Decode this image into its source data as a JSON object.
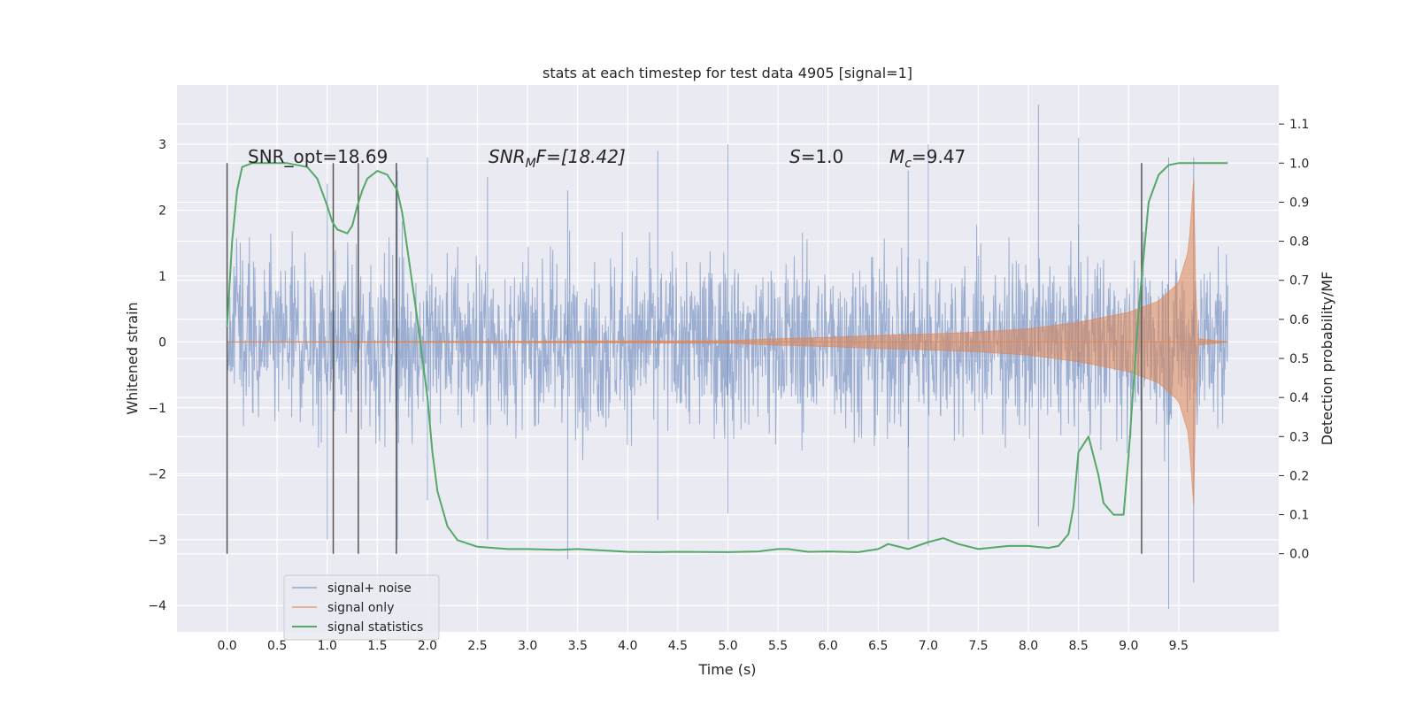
{
  "chart_data": {
    "type": "line",
    "title": "stats at each timestep for test data 4905 [signal=1]",
    "xlabel": "Time (s)",
    "ylabel": "Whitened strain",
    "ylabel_right": "Detection probability/MF",
    "xlim": [
      -0.5,
      10.5
    ],
    "ylim": [
      -4.4,
      3.9
    ],
    "ylim_right": [
      -0.2,
      1.2
    ],
    "x_ticks": [
      0.0,
      0.5,
      1.0,
      1.5,
      2.0,
      2.5,
      3.0,
      3.5,
      4.0,
      4.5,
      5.0,
      5.5,
      6.0,
      6.5,
      7.0,
      7.5,
      8.0,
      8.5,
      9.0,
      9.5
    ],
    "x_tick_labels": [
      "0.0",
      "0.5",
      "1.0",
      "1.5",
      "2.0",
      "2.5",
      "3.0",
      "3.5",
      "4.0",
      "4.5",
      "5.0",
      "5.5",
      "6.0",
      "6.5",
      "7.0",
      "7.5",
      "8.0",
      "8.5",
      "9.0",
      "9.5"
    ],
    "y_ticks": [
      -4,
      -3,
      -2,
      -1,
      0,
      1,
      2,
      3
    ],
    "y_tick_labels": [
      "−4",
      "−3",
      "−2",
      "−1",
      "0",
      "1",
      "2",
      "3"
    ],
    "y_right_ticks": [
      0.0,
      0.1,
      0.2,
      0.3,
      0.4,
      0.5,
      0.6,
      0.7,
      0.8,
      0.9,
      1.0,
      1.1
    ],
    "y_right_tick_labels": [
      "0.0",
      "0.1",
      "0.2",
      "0.3",
      "0.4",
      "0.5",
      "0.6",
      "0.7",
      "0.8",
      "0.9",
      "1.0",
      "1.1"
    ],
    "grid": true,
    "legend_position": "bottom-left",
    "annotations": [
      {
        "text": "SNR_opt=18.69"
      },
      {
        "text": "SNR",
        "sub": "M",
        "suffix": "F=[18.42]"
      },
      {
        "text": "S",
        "suffix": "=1.0"
      },
      {
        "text": "M",
        "sub": "c",
        "suffix": "=9.47"
      }
    ],
    "vertical_markers_x": [
      0.0,
      1.06,
      1.31,
      1.69,
      9.13
    ],
    "noise_envelope": {
      "x_range": [
        0.0,
        9.99
      ],
      "typical_amplitude": 1.5,
      "max_value": 3.6,
      "min_value": -4.05
    },
    "series": [
      {
        "name": "signal+ noise",
        "color": "#4c72b0",
        "axis": "left",
        "peaks": [
          [
            0.0,
            1.0,
            -3.0
          ],
          [
            1.0,
            2.4,
            -3.0
          ],
          [
            1.7,
            2.6,
            -3.0
          ],
          [
            2.0,
            2.8,
            -2.4
          ],
          [
            2.6,
            2.5,
            -3.0
          ],
          [
            3.4,
            2.3,
            -3.3
          ],
          [
            4.3,
            2.9,
            -2.7
          ],
          [
            5.0,
            3.0,
            -2.6
          ],
          [
            6.8,
            2.6,
            -3.0
          ],
          [
            7.0,
            3.0,
            -3.1
          ],
          [
            8.1,
            3.6,
            -2.8
          ],
          [
            8.5,
            3.1,
            -3.0
          ],
          [
            9.4,
            2.8,
            -4.05
          ],
          [
            9.65,
            2.8,
            -3.65
          ]
        ]
      },
      {
        "name": "signal only",
        "color": "#dd8452",
        "axis": "left",
        "envelope": [
          [
            0.0,
            0.0
          ],
          [
            5.0,
            0.02
          ],
          [
            5.5,
            0.05
          ],
          [
            6.0,
            0.07
          ],
          [
            6.5,
            0.1
          ],
          [
            7.0,
            0.12
          ],
          [
            7.5,
            0.15
          ],
          [
            8.0,
            0.2
          ],
          [
            8.5,
            0.3
          ],
          [
            9.0,
            0.45
          ],
          [
            9.3,
            0.62
          ],
          [
            9.5,
            0.9
          ],
          [
            9.6,
            1.4
          ],
          [
            9.65,
            2.5
          ],
          [
            9.68,
            0.05
          ],
          [
            10.0,
            0.0
          ]
        ]
      },
      {
        "name": "signal statistics",
        "color": "#55a868",
        "axis": "right",
        "x": [
          0.0,
          0.05,
          0.1,
          0.15,
          0.25,
          0.4,
          0.6,
          0.8,
          0.9,
          1.0,
          1.05,
          1.1,
          1.2,
          1.25,
          1.3,
          1.35,
          1.4,
          1.5,
          1.6,
          1.7,
          1.75,
          1.8,
          1.9,
          2.0,
          2.05,
          2.1,
          2.2,
          2.3,
          2.5,
          2.8,
          3.0,
          3.3,
          3.5,
          4.0,
          4.3,
          4.5,
          5.0,
          5.3,
          5.5,
          5.6,
          5.8,
          6.0,
          6.3,
          6.5,
          6.6,
          6.8,
          7.0,
          7.15,
          7.3,
          7.5,
          7.8,
          8.0,
          8.2,
          8.3,
          8.4,
          8.45,
          8.5,
          8.6,
          8.7,
          8.75,
          8.85,
          8.95,
          9.0,
          9.1,
          9.2,
          9.3,
          9.4,
          9.5,
          9.7,
          9.99
        ],
        "values": [
          0.58,
          0.8,
          0.93,
          0.99,
          1.0,
          1.0,
          1.0,
          0.99,
          0.96,
          0.89,
          0.85,
          0.83,
          0.82,
          0.84,
          0.89,
          0.93,
          0.96,
          0.98,
          0.97,
          0.93,
          0.87,
          0.78,
          0.6,
          0.4,
          0.26,
          0.16,
          0.07,
          0.035,
          0.018,
          0.012,
          0.012,
          0.01,
          0.012,
          0.005,
          0.004,
          0.005,
          0.004,
          0.006,
          0.012,
          0.012,
          0.005,
          0.006,
          0.004,
          0.012,
          0.025,
          0.012,
          0.03,
          0.04,
          0.025,
          0.012,
          0.02,
          0.02,
          0.015,
          0.02,
          0.05,
          0.12,
          0.26,
          0.3,
          0.2,
          0.13,
          0.1,
          0.1,
          0.25,
          0.62,
          0.9,
          0.97,
          0.995,
          1.0,
          1.0,
          1.0
        ]
      }
    ]
  }
}
